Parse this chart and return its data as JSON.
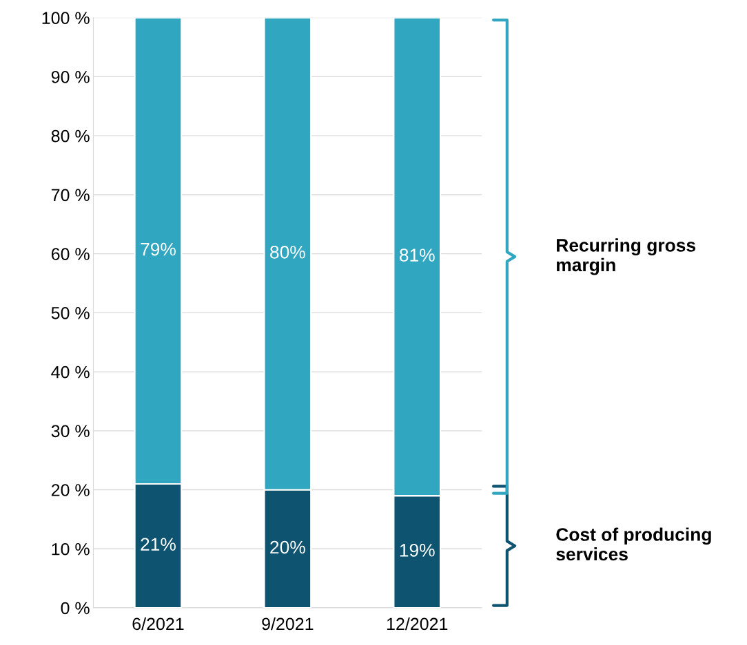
{
  "chart_data": {
    "type": "bar",
    "stacked": true,
    "categories": [
      "6/2021",
      "9/2021",
      "12/2021"
    ],
    "series": [
      {
        "name": "Cost of producing services",
        "color": "#0e5470",
        "values": [
          21,
          20,
          19
        ],
        "value_labels": [
          "21%",
          "20%",
          "19%"
        ]
      },
      {
        "name": "Recurring gross margin",
        "color": "#31a6c1",
        "values": [
          79,
          80,
          81
        ],
        "value_labels": [
          "79%",
          "80%",
          "81%"
        ]
      }
    ],
    "ylim": [
      0,
      100
    ],
    "yticks": [
      {
        "value": 0,
        "label": "0 %"
      },
      {
        "value": 10,
        "label": "10 %"
      },
      {
        "value": 20,
        "label": "20 %"
      },
      {
        "value": 30,
        "label": "30 %"
      },
      {
        "value": 40,
        "label": "40 %"
      },
      {
        "value": 50,
        "label": "50 %"
      },
      {
        "value": 60,
        "label": "60 %"
      },
      {
        "value": 70,
        "label": "70 %"
      },
      {
        "value": 80,
        "label": "80 %"
      },
      {
        "value": 90,
        "label": "90 %"
      },
      {
        "value": 100,
        "label": "100 %"
      }
    ],
    "grid": "y",
    "legend": false
  }
}
